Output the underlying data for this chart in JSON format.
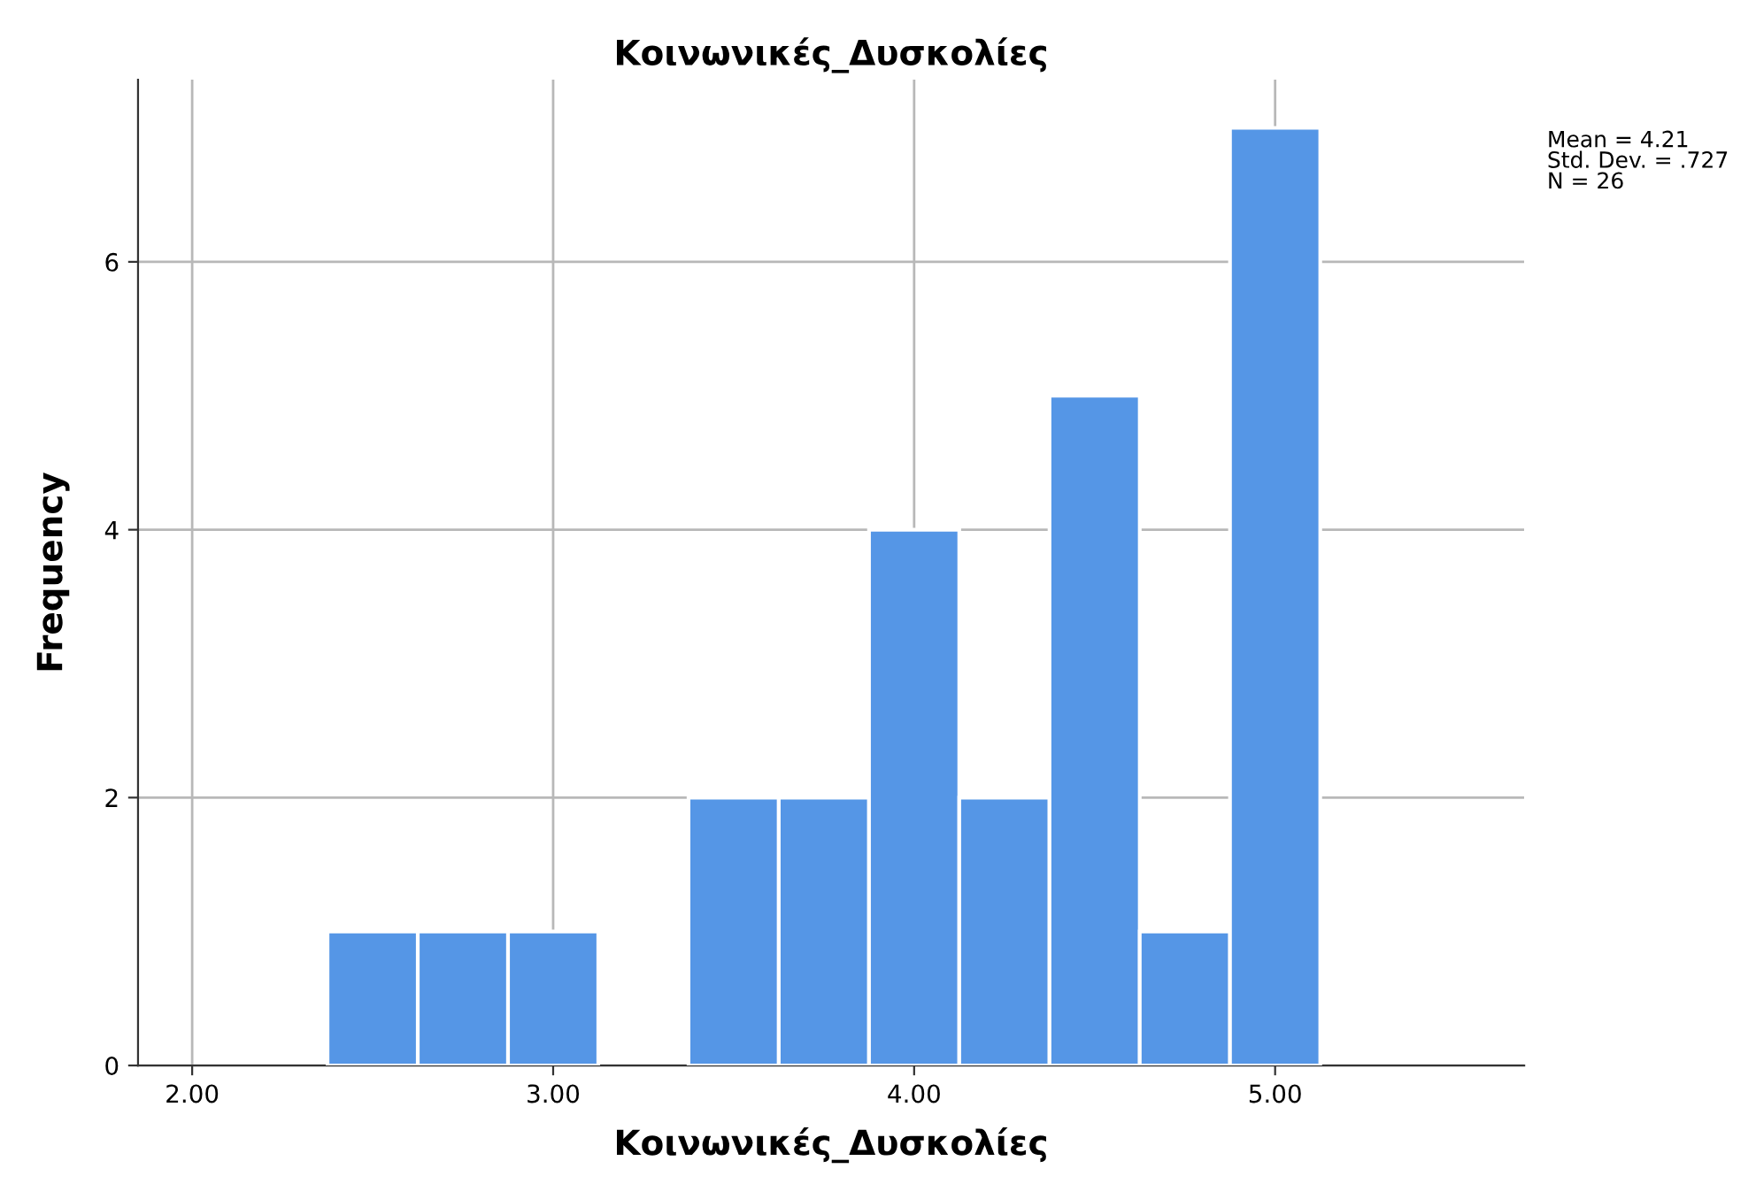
{
  "chart_data": {
    "type": "histogram",
    "title": "Κοινωνικές_Δυσκολίες",
    "xlabel": "Κοινωνικές_Δυσκολίες",
    "ylabel": "Frequency",
    "bins": [
      2.375,
      2.625,
      2.875,
      3.125,
      3.375,
      3.625,
      3.875,
      4.125,
      4.375,
      4.625,
      4.875,
      5.125
    ],
    "values": [
      1,
      1,
      1,
      0,
      2,
      2,
      4,
      2,
      5,
      1,
      7
    ],
    "color": "#5596e6",
    "xlim": [
      1.85,
      5.69
    ],
    "ylim": [
      0,
      7.36
    ],
    "xticks": [
      {
        "value": 2,
        "label": "2.00"
      },
      {
        "value": 3,
        "label": "3.00"
      },
      {
        "value": 4,
        "label": "4.00"
      },
      {
        "value": 5,
        "label": "5.00"
      }
    ],
    "yticks": [
      0,
      2,
      4,
      6
    ],
    "grid": true,
    "legend": false,
    "annotations": [
      "Mean = 4.21",
      "Std. Dev. = .727",
      "N = 26"
    ]
  }
}
